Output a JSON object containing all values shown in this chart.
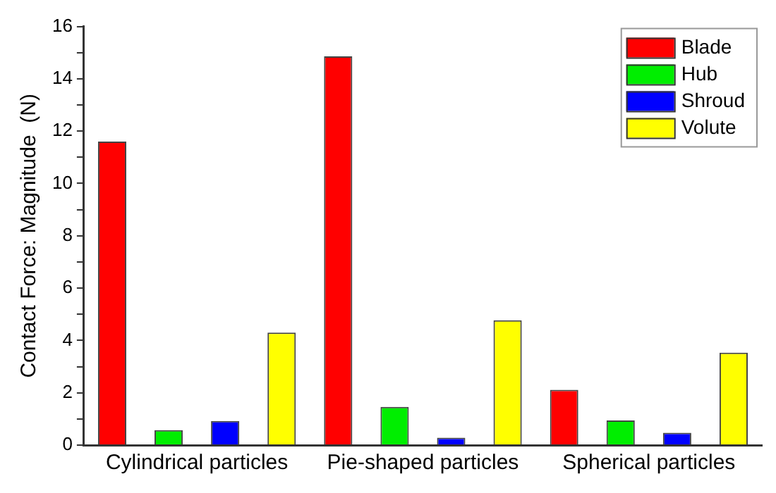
{
  "chart_data": {
    "type": "bar",
    "ylabel": "Contact Force: Magnitude  (N)",
    "categories": [
      "Cylindrical particles",
      "Pie-shaped particles",
      "Spherical particles"
    ],
    "series": [
      {
        "name": "Blade",
        "color": "#ff0000",
        "values": [
          11.6,
          14.86,
          2.11
        ]
      },
      {
        "name": "Hub",
        "color": "#00ee00",
        "values": [
          0.57,
          1.46,
          0.94
        ]
      },
      {
        "name": "Shroud",
        "color": "#0000ff",
        "values": [
          0.92,
          0.28,
          0.47
        ]
      },
      {
        "name": "Volute",
        "color": "#ffff00",
        "values": [
          4.3,
          4.77,
          3.53
        ]
      }
    ],
    "ylim": [
      0,
      16
    ],
    "yticks": [
      0,
      {
        "value": 1,
        "label": null
      },
      2,
      {
        "value": 3,
        "label": null
      },
      4,
      {
        "value": 5,
        "label": null
      },
      6,
      {
        "value": 7,
        "label": null
      },
      8,
      {
        "value": 9,
        "label": null
      },
      10,
      {
        "value": 11,
        "label": null
      },
      12,
      {
        "value": 13,
        "label": null
      },
      14,
      {
        "value": 15,
        "label": null
      },
      16
    ],
    "grid": false,
    "legend": "top right"
  }
}
